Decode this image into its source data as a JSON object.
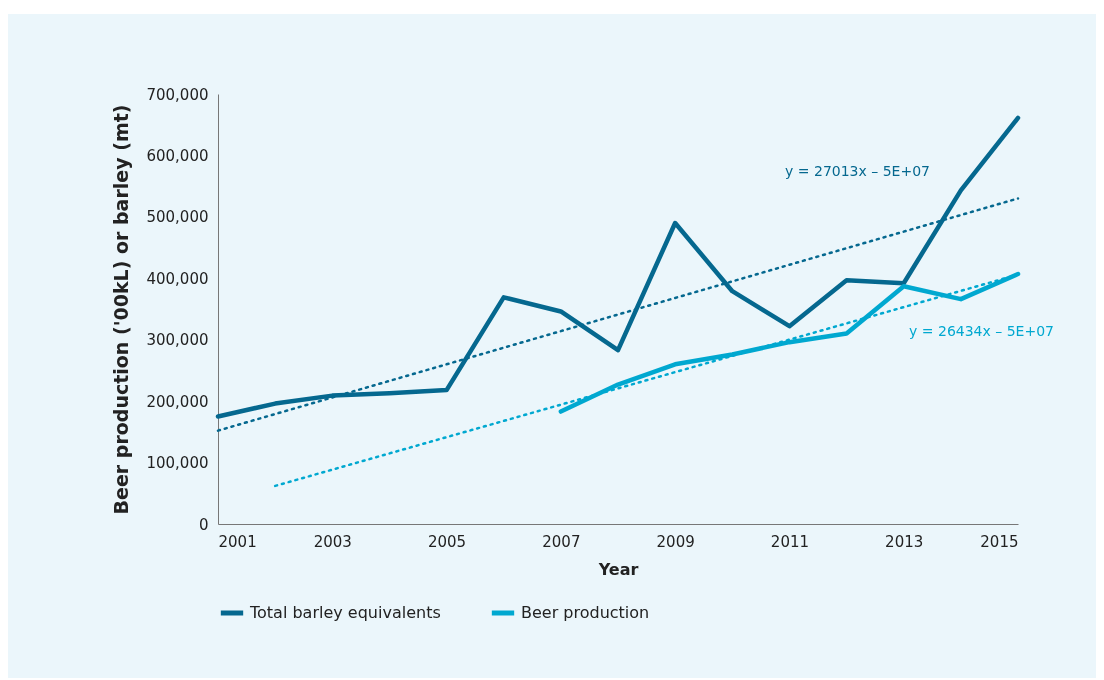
{
  "chart_data": {
    "type": "line",
    "xlabel": "Year",
    "ylabel": "Beer production ('00kL) or barley (mt)",
    "x": [
      2001,
      2002,
      2003,
      2004,
      2005,
      2006,
      2007,
      2008,
      2009,
      2010,
      2011,
      2012,
      2013,
      2014,
      2015
    ],
    "series": [
      {
        "name": "Total barley equivalents",
        "color": "#05688f",
        "values": [
          175000,
          196000,
          209000,
          213000,
          218000,
          369000,
          346000,
          283000,
          490000,
          379000,
          322000,
          397000,
          392000,
          543000,
          661000
        ]
      },
      {
        "name": "Beer production",
        "color": "#00a8d0",
        "values": [
          null,
          null,
          null,
          null,
          null,
          null,
          183000,
          227000,
          260000,
          276000,
          296000,
          310000,
          387000,
          366000,
          407000
        ]
      },
      {
        "type": "line",
        "line_style": "dotted",
        "color": "#05688f",
        "x": [
          2001,
          2015
        ],
        "values": [
          152000,
          530000
        ]
      },
      {
        "type": "line",
        "line_style": "dotted",
        "color": "#00a8d0",
        "x": [
          2002,
          2015
        ],
        "values": [
          62000,
          406000
        ]
      }
    ],
    "annotations": [
      "y = 27013x – 5E+07",
      "y = 26434x – 5E+07"
    ],
    "xlim": [
      2001,
      2015
    ],
    "xticks": [
      2001,
      2003,
      2005,
      2007,
      2009,
      2011,
      2013,
      2015
    ],
    "ylim": [
      0,
      700000
    ],
    "yticks": [
      0,
      {
        "value": 100000,
        "label": "100,000"
      },
      {
        "value": 200000,
        "label": "200,000"
      },
      {
        "value": 300000,
        "label": "300,000"
      },
      {
        "value": 400000,
        "label": "400,000"
      },
      {
        "value": 500000,
        "label": "500,000"
      },
      {
        "value": 600000,
        "label": "600,000"
      },
      {
        "value": 700000,
        "label": "700,000"
      }
    ],
    "grid": false,
    "legend": "bottom"
  }
}
